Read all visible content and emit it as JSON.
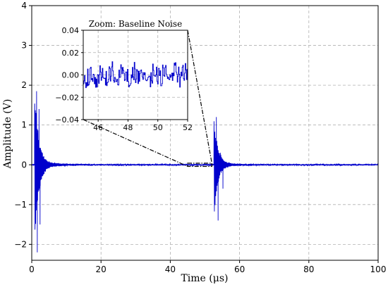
{
  "chart_data": {
    "type": "line",
    "xlabel": "Time (μs)",
    "ylabel": "Amplitude (V)",
    "xlim": [
      0,
      100
    ],
    "ylim": [
      -2.4,
      4
    ],
    "x_ticks": [
      "0",
      "20",
      "40",
      "60",
      "80",
      "100"
    ],
    "y_ticks": [
      "−2",
      "−1",
      "0",
      "1",
      "2",
      "3",
      "4"
    ],
    "grid": true,
    "series": [
      {
        "color": "#0000cc",
        "events": [
          {
            "x": 1.4,
            "y": 1.85
          },
          {
            "x": 1.6,
            "y": -2.2
          },
          {
            "x": 2.1,
            "y": 1.4
          },
          {
            "x": 2.4,
            "y": -1.5
          },
          {
            "x": 53.3,
            "y": 1.2
          },
          {
            "x": 53.8,
            "y": -1.4
          },
          {
            "x": 54.5,
            "y": 0.3
          },
          {
            "x": 55.2,
            "y": -0.6
          }
        ],
        "baseline_noise_amplitude": 0.015
      }
    ],
    "inset": {
      "title": "Zoom: Baseline Noise",
      "xlim": [
        45,
        52
      ],
      "ylim": [
        -0.04,
        0.04
      ],
      "x_ticks": [
        "46",
        "48",
        "50",
        "52"
      ],
      "y_ticks": [
        "−0.04",
        "−0.02",
        "0.00",
        "0.02",
        "0.04"
      ],
      "zoom_region": {
        "x": [
          45,
          52
        ],
        "y": [
          -0.04,
          0.04
        ]
      }
    }
  }
}
